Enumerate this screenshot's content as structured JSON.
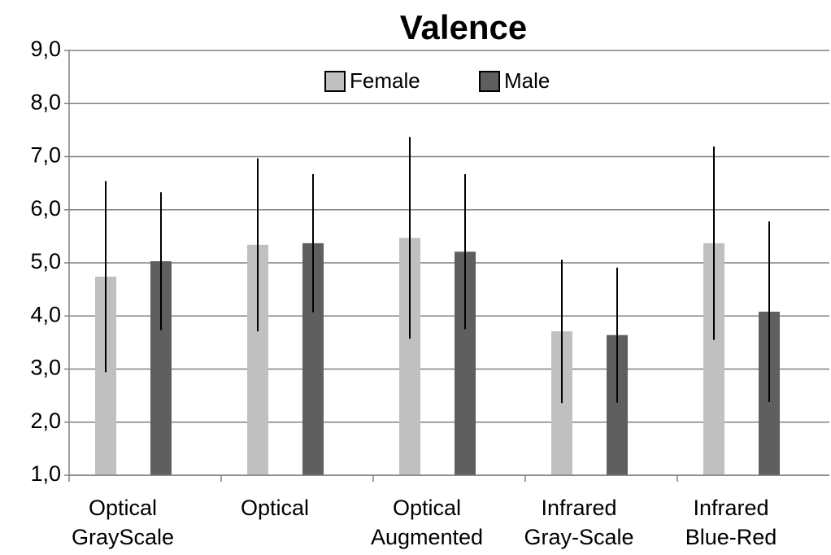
{
  "chart_data": {
    "type": "bar",
    "title": "Valence",
    "categories": [
      "Optical GrayScale",
      "Optical",
      "Optical Augmented",
      "Infrared Gray-Scale",
      "Infrared Blue-Red"
    ],
    "series": [
      {
        "name": "Female",
        "color": "#c0c0c0",
        "values": [
          4.74,
          5.34,
          5.47,
          3.71,
          5.37
        ],
        "errors": [
          1.8,
          1.63,
          1.9,
          1.35,
          1.82
        ]
      },
      {
        "name": "Male",
        "color": "#5f5f5f",
        "values": [
          5.03,
          5.37,
          5.21,
          3.64,
          4.08
        ],
        "errors": [
          1.3,
          1.3,
          1.46,
          1.27,
          1.7
        ]
      }
    ],
    "ylim": [
      1,
      9
    ],
    "yticks": [
      {
        "value": 1,
        "label": "1,0"
      },
      {
        "value": 2,
        "label": "2,0"
      },
      {
        "value": 3,
        "label": "3,0"
      },
      {
        "value": 4,
        "label": "4,0"
      },
      {
        "value": 5,
        "label": "5,0"
      },
      {
        "value": 6,
        "label": "6,0"
      },
      {
        "value": 7,
        "label": "7,0"
      },
      {
        "value": 8,
        "label": "8,0"
      },
      {
        "value": 9,
        "label": "9,0"
      }
    ],
    "grid": true,
    "legend": "top"
  }
}
